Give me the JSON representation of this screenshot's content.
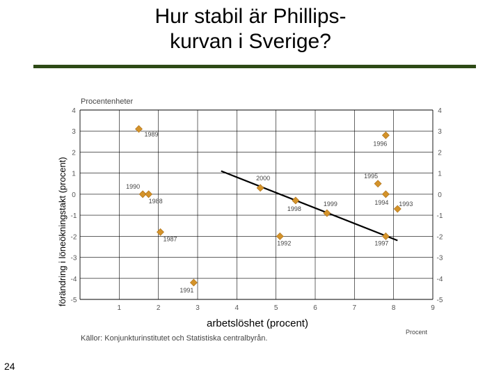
{
  "slide": {
    "title_line1": "Hur stabil är Phillips-",
    "title_line2": "kurvan i Sverige?",
    "page_number": "24"
  },
  "chart_data": {
    "type": "scatter",
    "unit_label": "Procentenheter",
    "xlabel": "arbetslöshet (procent)",
    "x_axis_end_label": "Procent",
    "ylabel": "förändring i löneökningstakt (procent)",
    "source": "Källor: Konjunkturinstitutet och Statistiska centralbyrån.",
    "xlim": [
      0,
      9
    ],
    "ylim": [
      -5,
      4
    ],
    "x_ticks": [
      "1",
      "2",
      "3",
      "4",
      "5",
      "6",
      "7",
      "8",
      "9"
    ],
    "y_ticks_left": [
      "4",
      "3",
      "2",
      "1",
      "0",
      "-1",
      "-2",
      "-3",
      "-4",
      "-5"
    ],
    "y_ticks_right": [
      "4",
      "3",
      "2",
      "1",
      "0",
      "-1",
      "-2",
      "-3",
      "-4",
      "-5"
    ],
    "grid": true,
    "marker_color": "#d4932a",
    "trend_line": {
      "x": [
        3.6,
        8.1
      ],
      "y": [
        1.1,
        -2.2
      ]
    },
    "points": [
      {
        "label": "1989",
        "x": 1.5,
        "y": 3.1
      },
      {
        "label": "1996",
        "x": 7.8,
        "y": 2.8
      },
      {
        "label": "2000",
        "x": 4.6,
        "y": 0.3
      },
      {
        "label": "1995",
        "x": 7.6,
        "y": 0.5
      },
      {
        "label": "1990",
        "x": 1.6,
        "y": 0.0
      },
      {
        "label": "1988",
        "x": 1.75,
        "y": 0.0
      },
      {
        "label": "1994",
        "x": 7.8,
        "y": 0.0
      },
      {
        "label": "1998",
        "x": 5.5,
        "y": -0.3
      },
      {
        "label": "1993",
        "x": 8.1,
        "y": -0.7
      },
      {
        "label": "1999",
        "x": 6.3,
        "y": -0.9
      },
      {
        "label": "1987",
        "x": 2.05,
        "y": -1.8
      },
      {
        "label": "1992",
        "x": 5.1,
        "y": -2.0
      },
      {
        "label": "1997",
        "x": 7.8,
        "y": -2.0
      },
      {
        "label": "1991",
        "x": 2.9,
        "y": -4.2
      }
    ]
  }
}
